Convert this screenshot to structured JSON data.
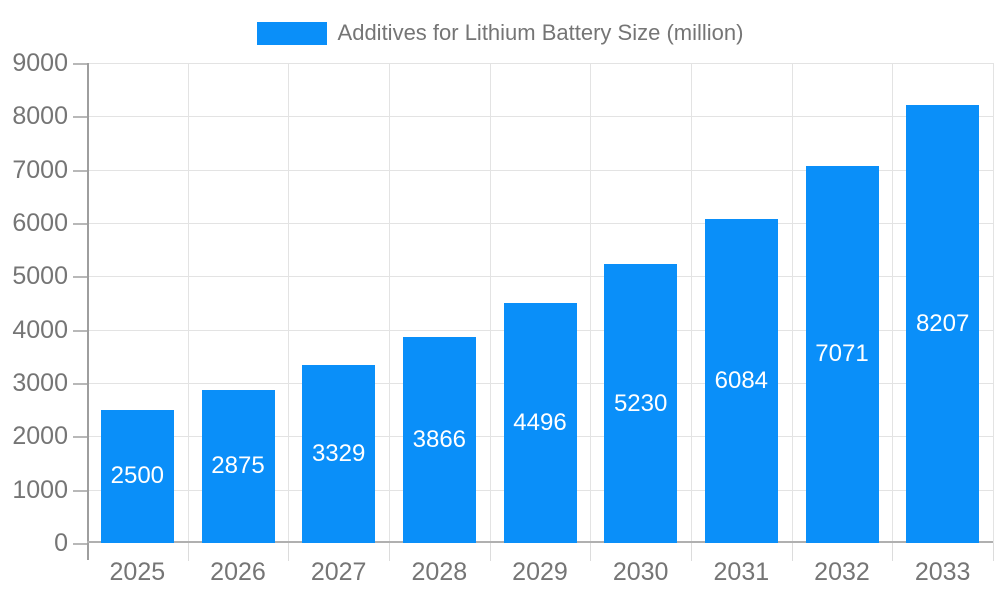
{
  "page": {
    "background_color": "#ffffff",
    "text_color": "#757575"
  },
  "legend": {
    "label": "Additives for Lithium Battery Size (million)",
    "swatch_color": "#0A8FF9",
    "position": "top"
  },
  "chart_data": {
    "type": "bar",
    "title": "Additives for Lithium Battery Size (million)",
    "categories": [
      "2025",
      "2026",
      "2027",
      "2028",
      "2029",
      "2030",
      "2031",
      "2032",
      "2033"
    ],
    "values": [
      2500,
      2875,
      3329,
      3866,
      4496,
      5230,
      6084,
      7071,
      8207
    ],
    "xlabel": "",
    "ylabel": "",
    "ylim": [
      0,
      9000
    ],
    "yticks": [
      0,
      1000,
      2000,
      3000,
      4000,
      5000,
      6000,
      7000,
      8000,
      9000
    ],
    "grid": true,
    "legend_position": "top",
    "bar_color": "#0A8FF9",
    "value_label_color": "#ffffff",
    "axis_text_color": "#757575",
    "grid_color": "#e3e3e3",
    "axis_line_color": "#b0b0b0",
    "value_labels_inside_bars": true
  }
}
